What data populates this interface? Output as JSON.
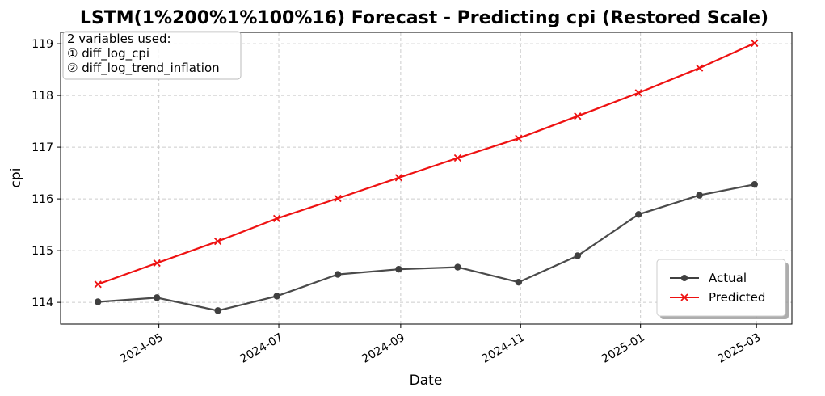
{
  "chart_data": {
    "type": "line",
    "title": "LSTM(1%200%1%100%16) Forecast - Predicting cpi (Restored Scale)",
    "xlabel": "Date",
    "ylabel": "cpi",
    "x": [
      "2024-03-31",
      "2024-04-30",
      "2024-05-31",
      "2024-06-30",
      "2024-07-31",
      "2024-08-31",
      "2024-09-30",
      "2024-10-31",
      "2024-11-30",
      "2024-12-31",
      "2025-01-31",
      "2025-02-28"
    ],
    "x_ticks": [
      "2024-05",
      "2024-07",
      "2024-09",
      "2024-11",
      "2025-01",
      "2025-03"
    ],
    "x_tick_dates": [
      "2024-05-01",
      "2024-07-01",
      "2024-09-01",
      "2024-11-01",
      "2025-01-01",
      "2025-03-01"
    ],
    "xlim": [
      "2024-03-12",
      "2025-03-19"
    ],
    "y_ticks": [
      114,
      115,
      116,
      117,
      118,
      119
    ],
    "ylim": [
      113.58,
      119.22
    ],
    "grid": true,
    "legend_position": "lower-right",
    "series": [
      {
        "name": "Actual",
        "color": "#404040",
        "marker": "circle",
        "values": [
          114.01,
          114.09,
          113.84,
          114.12,
          114.54,
          114.64,
          114.68,
          114.39,
          114.9,
          115.7,
          116.07,
          116.28
        ]
      },
      {
        "name": "Predicted",
        "color": "#ee1111",
        "marker": "x",
        "values": [
          114.35,
          114.76,
          115.18,
          115.62,
          116.01,
          116.41,
          116.79,
          117.17,
          117.6,
          118.05,
          118.53,
          119.01
        ]
      }
    ],
    "annotation": {
      "heading": "2 variables used:",
      "lines": [
        "① diff_log_cpi",
        "② diff_log_trend_inflation"
      ]
    }
  }
}
